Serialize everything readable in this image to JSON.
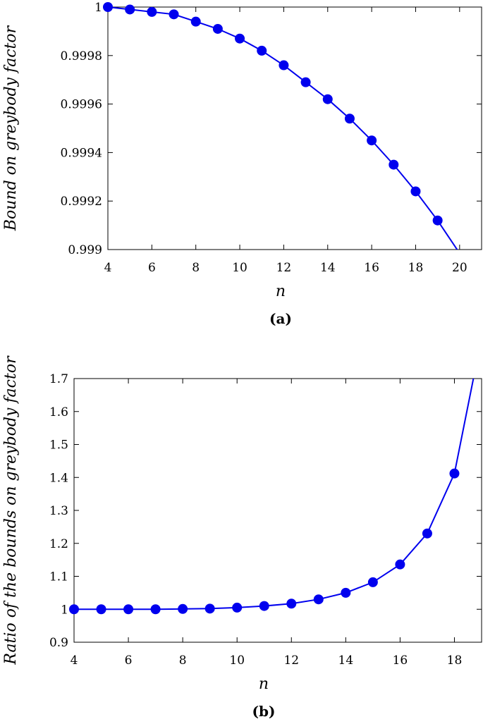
{
  "chart_data": [
    {
      "type": "line",
      "panel_label": "(a)",
      "xlabel": "n",
      "ylabel": "Bound on greybody factor",
      "xlim": [
        4,
        21
      ],
      "ylim": [
        0.999,
        1.0
      ],
      "xticks": [
        "4",
        "6",
        "8",
        "10",
        "12",
        "14",
        "16",
        "18",
        "20"
      ],
      "yticks": [
        "0.999",
        "0.9992",
        "0.9994",
        "0.9996",
        "0.9998",
        "1"
      ],
      "grid": false,
      "series": [
        {
          "color": "#0000ee",
          "marker": "circle",
          "x": [
            4,
            5,
            6,
            7,
            8,
            9,
            10,
            11,
            12,
            13,
            14,
            15,
            16,
            17,
            18,
            19
          ],
          "y": [
            1.0,
            0.99999,
            0.99998,
            0.99997,
            0.99994,
            0.99991,
            0.99987,
            0.99982,
            0.99976,
            0.99969,
            0.99962,
            0.99954,
            0.99945,
            0.99935,
            0.99924,
            0.99912
          ],
          "line_extend": [
            [
              20,
              0.998985
            ]
          ]
        }
      ]
    },
    {
      "type": "line",
      "panel_label": "(b)",
      "xlabel": "n",
      "ylabel": "Ratio of the bounds on greybody factor",
      "xlim": [
        4,
        19
      ],
      "ylim": [
        0.9,
        1.7
      ],
      "xticks": [
        "4",
        "6",
        "8",
        "10",
        "12",
        "14",
        "16",
        "18"
      ],
      "yticks": [
        "0.9",
        "1",
        "1.1",
        "1.2",
        "1.3",
        "1.4",
        "1.5",
        "1.6",
        "1.7"
      ],
      "grid": false,
      "series": [
        {
          "color": "#0000ee",
          "marker": "circle",
          "x": [
            4,
            5,
            6,
            7,
            8,
            9,
            10,
            11,
            12,
            13,
            14,
            15,
            16,
            17,
            18
          ],
          "y": [
            1.0,
            1.0,
            1.0,
            1.0,
            1.001,
            1.002,
            1.005,
            1.01,
            1.017,
            1.03,
            1.05,
            1.082,
            1.136,
            1.23,
            1.412
          ],
          "line_extend": [
            [
              18.7,
              1.7
            ]
          ]
        }
      ]
    }
  ]
}
